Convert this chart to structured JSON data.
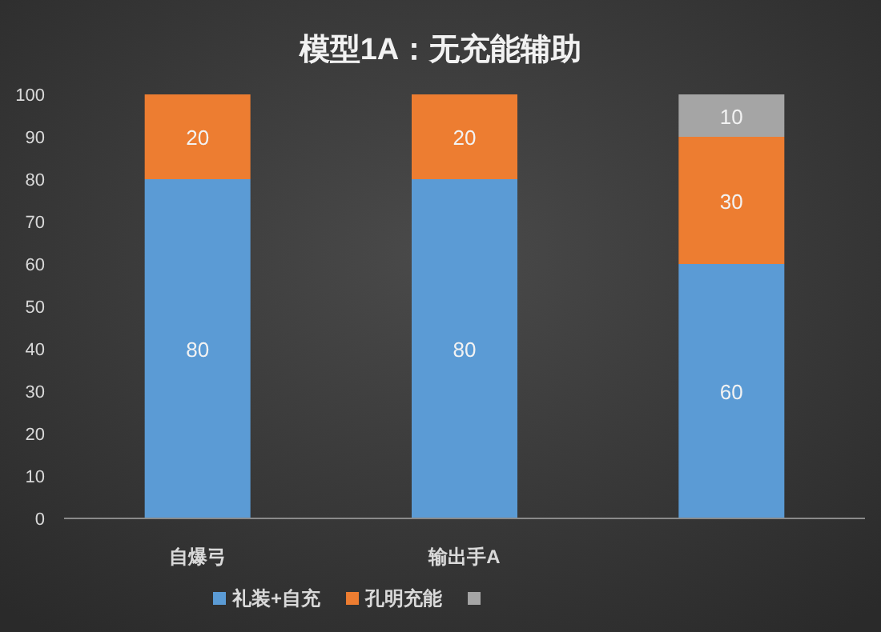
{
  "chart_data": {
    "type": "bar",
    "title": "模型1A：无充能辅助",
    "stacked": true,
    "data_labels": true,
    "legend": "bottom",
    "grid": false,
    "categories": [
      "自爆弓",
      "输出手A",
      null
    ],
    "ylim": [
      0,
      100
    ],
    "yticks": [
      0,
      10,
      20,
      30,
      40,
      50,
      60,
      70,
      80,
      90,
      100
    ],
    "series": [
      {
        "name": "礼装+自充",
        "color": "#5b9bd5",
        "values": [
          80,
          80,
          60
        ]
      },
      {
        "name": "孔明充能",
        "color": "#ed7d31",
        "values": [
          20,
          20,
          30
        ]
      },
      {
        "color": "#a5a5a5",
        "values": [
          null,
          null,
          10
        ]
      }
    ]
  }
}
